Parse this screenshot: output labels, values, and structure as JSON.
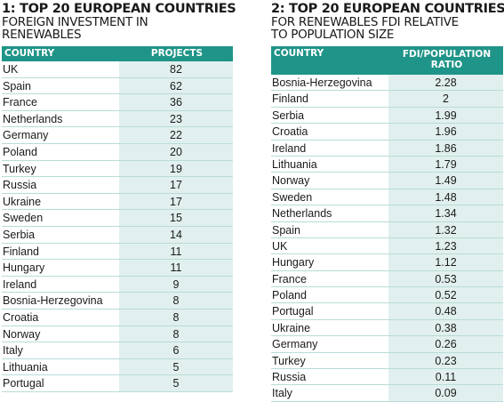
{
  "table1": {
    "title": "1: TOP 20 EUROPEAN COUNTRIES",
    "subtitle_line1": "FOREIGN INVESTMENT IN",
    "subtitle_line2": "RENEWABLES",
    "col1_header": "COUNTRY",
    "col2_header": "PROJECTS"
  },
  "table2": {
    "title": "2: TOP 20 EUROPEAN COUNTRIES",
    "subtitle_line1": "FOR RENEWABLES FDI RELATIVE",
    "subtitle_line2": "TO POPULATION SIZE",
    "col1_header": "COUNTRY",
    "col2_header_line1": "FDI/POPULATION",
    "col2_header_line2": "RATIO"
  },
  "chart_data": [
    {
      "type": "table",
      "title": "1: TOP 20 EUROPEAN COUNTRIES",
      "subtitle": "FOREIGN INVESTMENT IN RENEWABLES",
      "columns": [
        "COUNTRY",
        "PROJECTS"
      ],
      "rows": [
        [
          "UK",
          "82"
        ],
        [
          "Spain",
          "62"
        ],
        [
          "France",
          "36"
        ],
        [
          "Netherlands",
          "23"
        ],
        [
          "Germany",
          "22"
        ],
        [
          "Poland",
          "20"
        ],
        [
          "Turkey",
          "19"
        ],
        [
          "Russia",
          "17"
        ],
        [
          "Ukraine",
          "17"
        ],
        [
          "Sweden",
          "15"
        ],
        [
          "Serbia",
          "14"
        ],
        [
          "Finland",
          "11"
        ],
        [
          "Hungary",
          "11"
        ],
        [
          "Ireland",
          "9"
        ],
        [
          "Bosnia-Herzegovina",
          "8"
        ],
        [
          "Croatia",
          "8"
        ],
        [
          "Norway",
          "8"
        ],
        [
          "Italy",
          "6"
        ],
        [
          "Lithuania",
          "5"
        ],
        [
          "Portugal",
          "5"
        ]
      ]
    },
    {
      "type": "table",
      "title": "2: TOP 20 EUROPEAN COUNTRIES",
      "subtitle": "FOR RENEWABLES FDI RELATIVE TO POPULATION SIZE",
      "columns": [
        "COUNTRY",
        "FDI/POPULATION RATIO"
      ],
      "rows": [
        [
          "Bosnia-Herzegovina",
          "2.28"
        ],
        [
          "Finland",
          "2"
        ],
        [
          "Serbia",
          "1.99"
        ],
        [
          "Croatia",
          "1.96"
        ],
        [
          "Ireland",
          "1.86"
        ],
        [
          "Lithuania",
          "1.79"
        ],
        [
          "Norway",
          "1.49"
        ],
        [
          "Sweden",
          "1.48"
        ],
        [
          "Netherlands",
          "1.34"
        ],
        [
          "Spain",
          "1.32"
        ],
        [
          "UK",
          "1.23"
        ],
        [
          "Hungary",
          "1.12"
        ],
        [
          "France",
          "0.53"
        ],
        [
          "Poland",
          "0.52"
        ],
        [
          "Portugal",
          "0.48"
        ],
        [
          "Ukraine",
          "0.38"
        ],
        [
          "Germany",
          "0.26"
        ],
        [
          "Turkey",
          "0.23"
        ],
        [
          "Russia",
          "0.11"
        ],
        [
          "Italy",
          "0.09"
        ]
      ]
    }
  ],
  "colors": {
    "header_bg": "#1f9488",
    "value_bg": "#e1f0ee",
    "row_rule": "#b8dcd8"
  }
}
